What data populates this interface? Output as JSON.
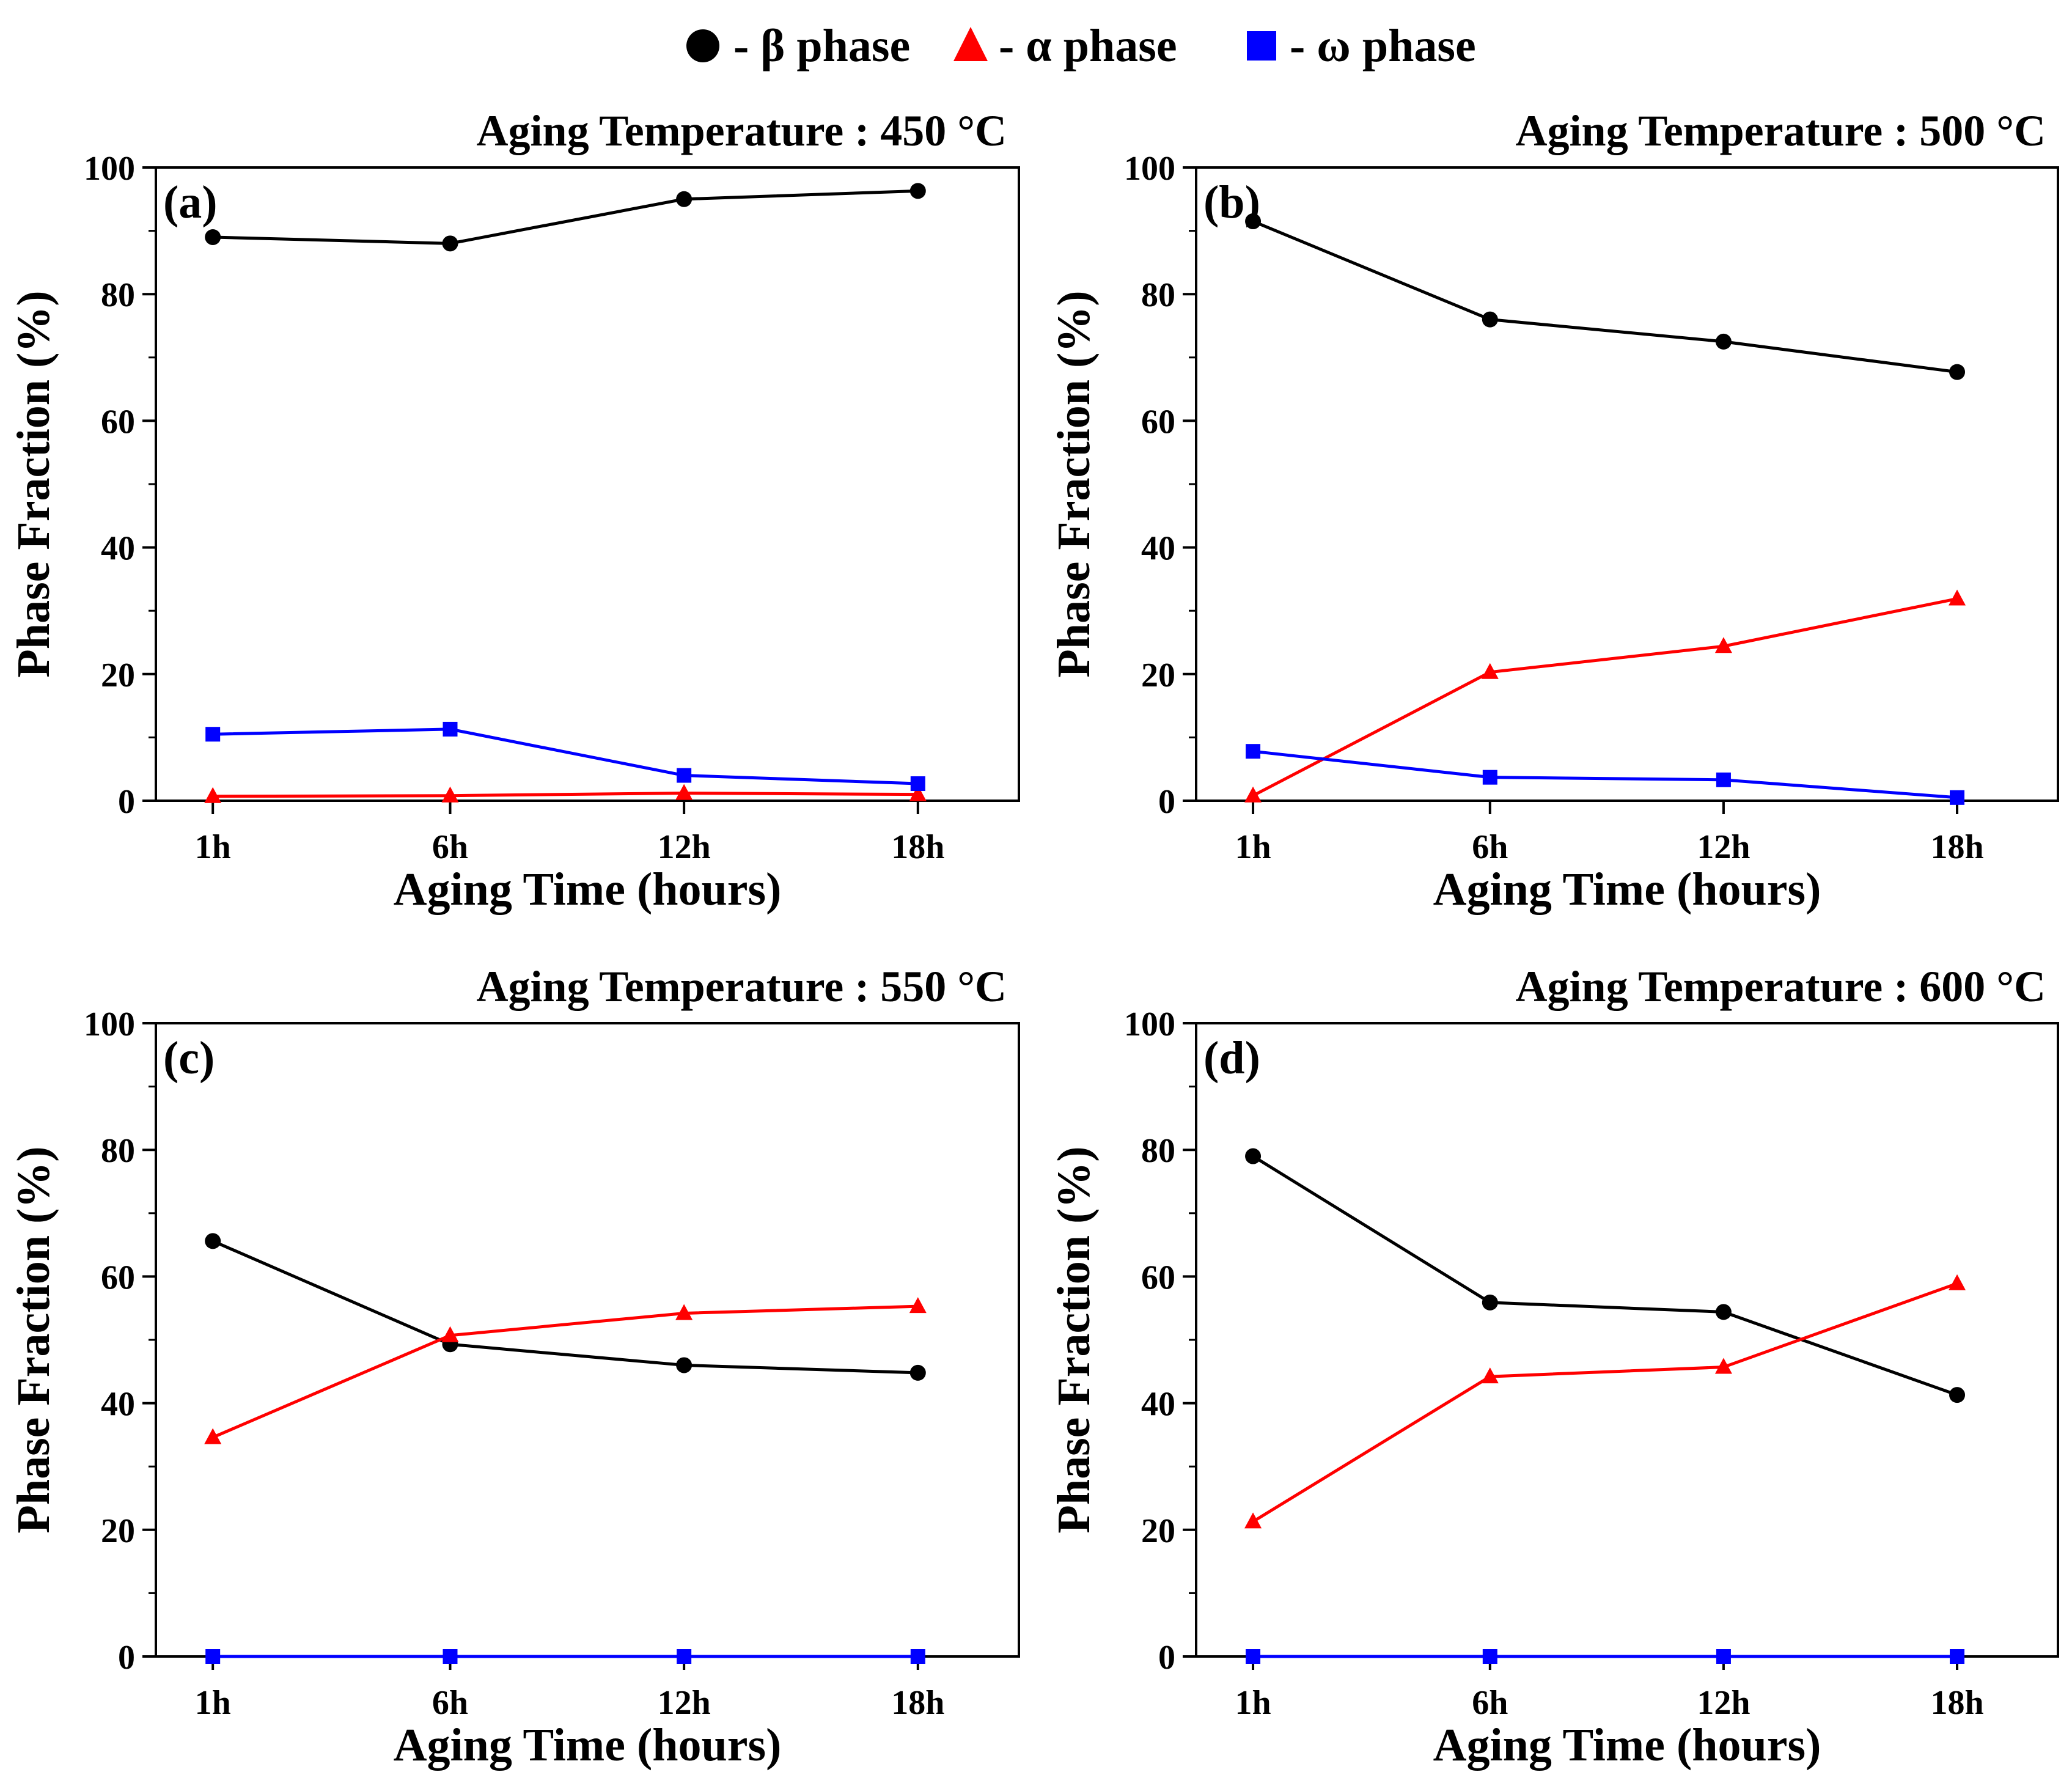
{
  "legend": {
    "beta": {
      "label": "- β phase",
      "marker": "circle",
      "color": "#000000"
    },
    "alpha": {
      "label": "- α phase",
      "marker": "triangle",
      "color": "#ff0000"
    },
    "omega": {
      "label": "- ω phase",
      "marker": "square",
      "color": "#0000ff"
    }
  },
  "chart_data": [
    {
      "type": "line",
      "panel": "(a)",
      "title": "Aging Temperature : 450 °C",
      "xlabel": "Aging Time (hours)",
      "ylabel": "Phase Fraction (%)",
      "categories": [
        "1h",
        "6h",
        "12h",
        "18h"
      ],
      "ylim": [
        0,
        100
      ],
      "yticks": [
        0,
        20,
        40,
        60,
        80,
        100
      ],
      "series": [
        {
          "name": "β phase",
          "key": "beta",
          "values": [
            89.0,
            88.0,
            95.0,
            96.3
          ]
        },
        {
          "name": "α phase",
          "key": "alpha",
          "values": [
            0.7,
            0.8,
            1.2,
            1.0
          ]
        },
        {
          "name": "ω phase",
          "key": "omega",
          "values": [
            10.5,
            11.3,
            4.0,
            2.7
          ]
        }
      ]
    },
    {
      "type": "line",
      "panel": "(b)",
      "title": "Aging Temperature : 500 °C",
      "xlabel": "Aging Time (hours)",
      "ylabel": "Phase Fraction (%)",
      "categories": [
        "1h",
        "6h",
        "12h",
        "18h"
      ],
      "ylim": [
        0,
        100
      ],
      "yticks": [
        0,
        20,
        40,
        60,
        80,
        100
      ],
      "series": [
        {
          "name": "β phase",
          "key": "beta",
          "values": [
            91.5,
            76.0,
            72.5,
            67.7
          ]
        },
        {
          "name": "α phase",
          "key": "alpha",
          "values": [
            0.8,
            20.3,
            24.4,
            31.9
          ]
        },
        {
          "name": "ω phase",
          "key": "omega",
          "values": [
            7.8,
            3.7,
            3.3,
            0.5
          ]
        }
      ]
    },
    {
      "type": "line",
      "panel": "(c)",
      "title": "Aging Temperature : 550 °C",
      "xlabel": "Aging Time (hours)",
      "ylabel": "Phase Fraction (%)",
      "categories": [
        "1h",
        "6h",
        "12h",
        "18h"
      ],
      "ylim": [
        0,
        100
      ],
      "yticks": [
        0,
        20,
        40,
        60,
        80,
        100
      ],
      "series": [
        {
          "name": "β phase",
          "key": "beta",
          "values": [
            65.6,
            49.3,
            46.0,
            44.8
          ]
        },
        {
          "name": "α phase",
          "key": "alpha",
          "values": [
            34.6,
            50.7,
            54.2,
            55.3
          ]
        },
        {
          "name": "ω phase",
          "key": "omega",
          "values": [
            0.0,
            0.0,
            0.0,
            0.0
          ]
        }
      ]
    },
    {
      "type": "line",
      "panel": "(d)",
      "title": "Aging Temperature : 600 °C",
      "xlabel": "Aging Time (hours)",
      "ylabel": "Phase Fraction (%)",
      "categories": [
        "1h",
        "6h",
        "12h",
        "18h"
      ],
      "ylim": [
        0,
        100
      ],
      "yticks": [
        0,
        20,
        40,
        60,
        80,
        100
      ],
      "series": [
        {
          "name": "β phase",
          "key": "beta",
          "values": [
            79.0,
            55.9,
            54.4,
            41.3
          ]
        },
        {
          "name": "α phase",
          "key": "alpha",
          "values": [
            21.3,
            44.2,
            45.7,
            58.9
          ]
        },
        {
          "name": "ω phase",
          "key": "omega",
          "values": [
            0.0,
            0.0,
            0.0,
            0.0
          ]
        }
      ]
    }
  ]
}
